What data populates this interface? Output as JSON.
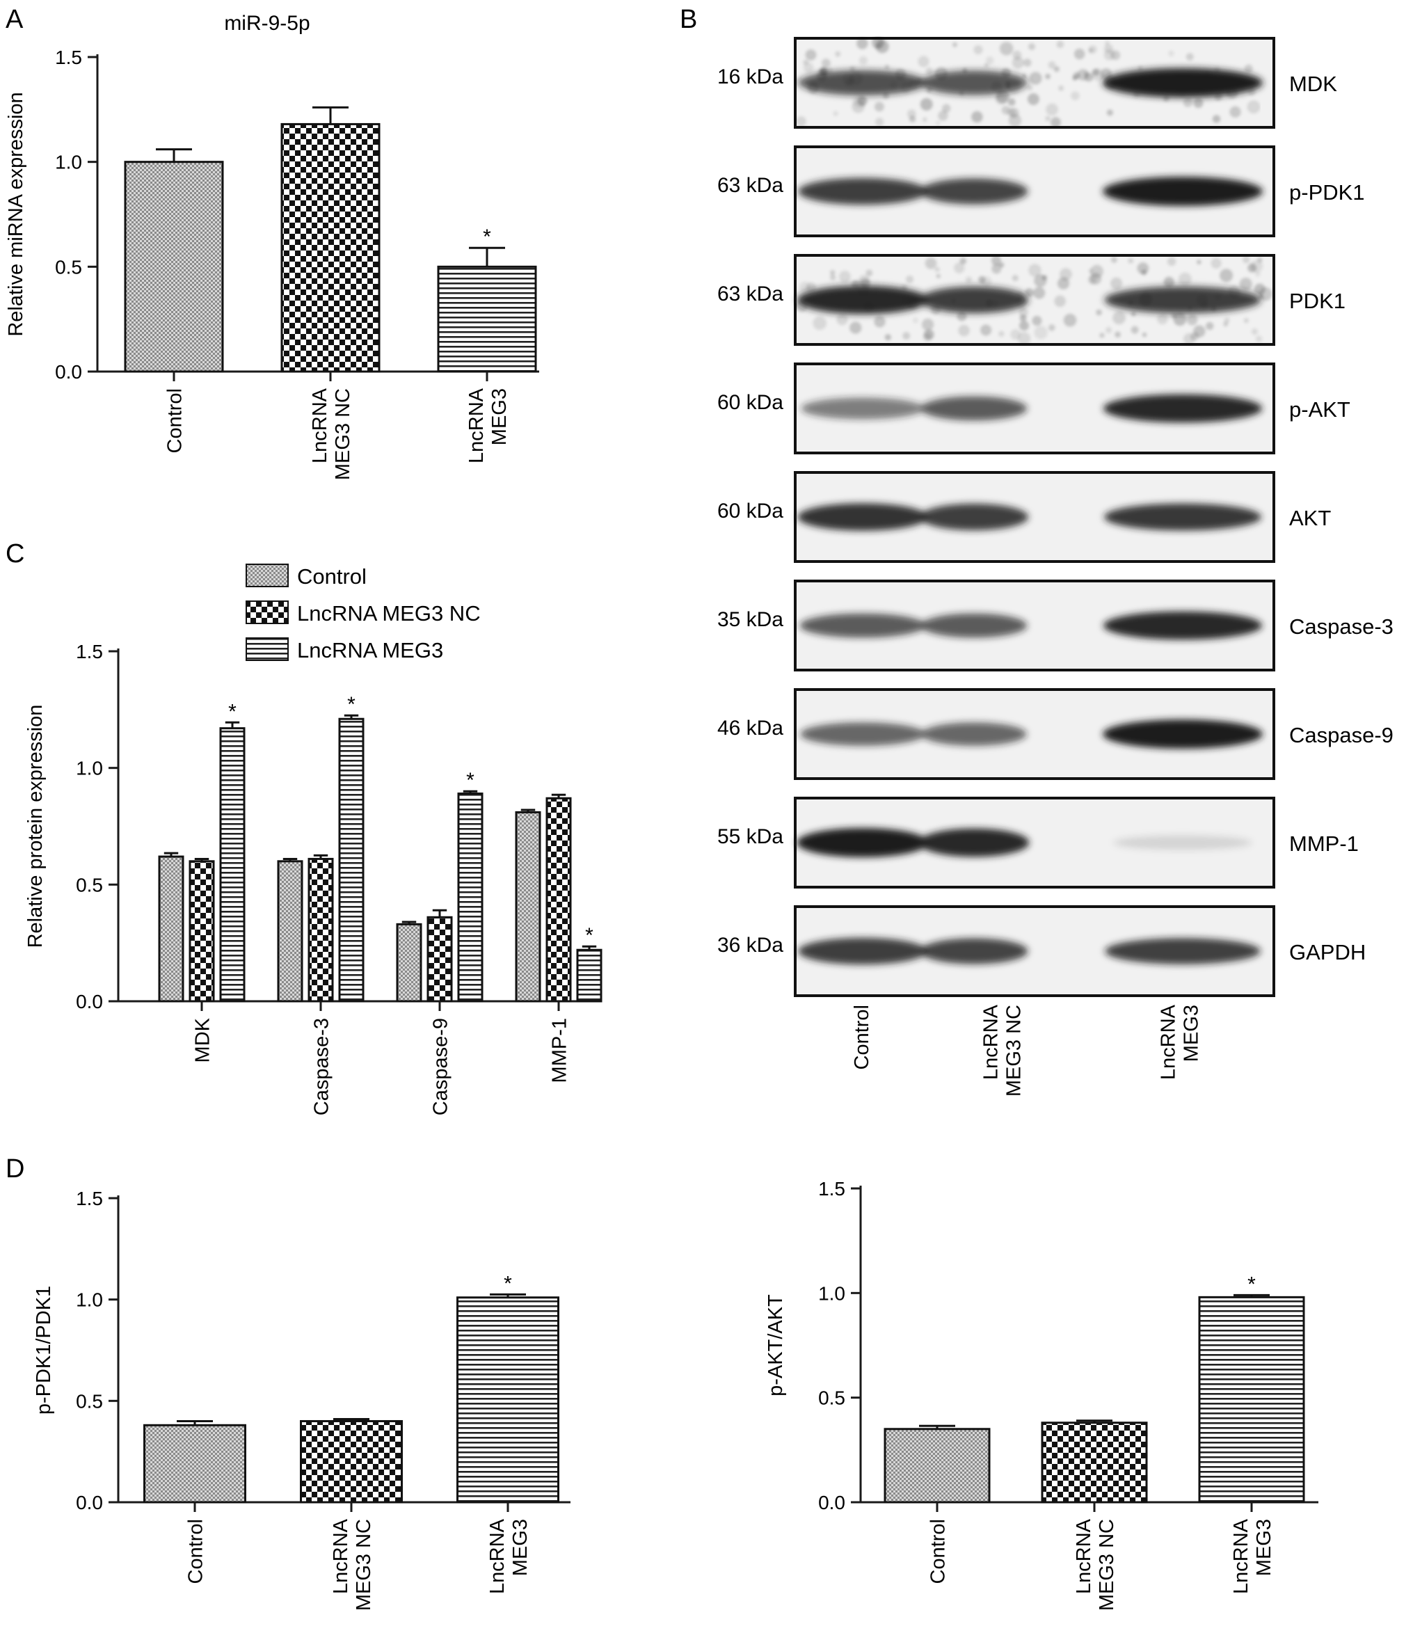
{
  "figure": {
    "panel_letters": [
      "A",
      "B",
      "C",
      "D"
    ]
  },
  "colors": {
    "axis": "#1a1a1a",
    "bar_outline": "#111111",
    "blot_background": "#f1f1f1",
    "band": "#1c1c1c"
  },
  "chart_data": [
    {
      "id": "A",
      "type": "bar",
      "title": "miR-9-5p",
      "ylabel": "Relative miRNA expression",
      "xlabel": "",
      "ylim": [
        0,
        1.5
      ],
      "yticks": [
        "0.0",
        "0.5",
        "1.0",
        "1.5"
      ],
      "categories": [
        [
          "Control"
        ],
        [
          "LncRNA",
          "MEG3 NC"
        ],
        [
          "LncRNA",
          "MEG3"
        ]
      ],
      "values": [
        1.0,
        1.18,
        0.5
      ],
      "errors": [
        0.06,
        0.08,
        0.09
      ],
      "significance": [
        "",
        "",
        "*"
      ],
      "patterns": [
        "control",
        "nc",
        "meg3"
      ],
      "grid": false
    },
    {
      "id": "C",
      "type": "bar",
      "title": "",
      "ylabel": "Relative protein expression",
      "xlabel": "",
      "ylim": [
        0,
        1.5
      ],
      "yticks": [
        "0.0",
        "0.5",
        "1.0",
        "1.5"
      ],
      "categories": [
        [
          "MDK"
        ],
        [
          "Caspase-3"
        ],
        [
          "Caspase-9"
        ],
        [
          "MMP-1"
        ]
      ],
      "legend": [
        "Control",
        "LncRNA MEG3 NC",
        "LncRNA MEG3"
      ],
      "legend_position": "top",
      "series": [
        {
          "name": "Control",
          "pattern": "control",
          "values": [
            0.62,
            0.6,
            0.33,
            0.81
          ],
          "errors": [
            0.015,
            0.01,
            0.01,
            0.01
          ],
          "significance": [
            "",
            "",
            "",
            ""
          ]
        },
        {
          "name": "LncRNA MEG3 NC",
          "pattern": "nc",
          "values": [
            0.6,
            0.61,
            0.36,
            0.87
          ],
          "errors": [
            0.01,
            0.015,
            0.03,
            0.015
          ],
          "significance": [
            "",
            "",
            "",
            ""
          ]
        },
        {
          "name": "LncRNA MEG3",
          "pattern": "meg3",
          "values": [
            1.17,
            1.21,
            0.89,
            0.22
          ],
          "errors": [
            0.025,
            0.015,
            0.01,
            0.015
          ],
          "significance": [
            "*",
            "*",
            "*",
            "*"
          ]
        }
      ],
      "grid": false
    },
    {
      "id": "D1",
      "type": "bar",
      "title": "",
      "ylabel": "p-PDK1/PDK1",
      "xlabel": "",
      "ylim": [
        0,
        1.5
      ],
      "yticks": [
        "0.0",
        "0.5",
        "1.0",
        "1.5"
      ],
      "categories": [
        [
          "Control"
        ],
        [
          "LncRNA",
          "MEG3 NC"
        ],
        [
          "LncRNA",
          "MEG3"
        ]
      ],
      "values": [
        0.38,
        0.4,
        1.01
      ],
      "errors": [
        0.02,
        0.01,
        0.015
      ],
      "significance": [
        "",
        "",
        "*"
      ],
      "patterns": [
        "control",
        "nc",
        "meg3"
      ],
      "grid": false
    },
    {
      "id": "D2",
      "type": "bar",
      "title": "",
      "ylabel": "p-AKT/AKT",
      "xlabel": "",
      "ylim": [
        0,
        1.5
      ],
      "yticks": [
        "0.0",
        "0.5",
        "1.0",
        "1.5"
      ],
      "categories": [
        [
          "Control"
        ],
        [
          "LncRNA",
          "MEG3 NC"
        ],
        [
          "LncRNA",
          "MEG3"
        ]
      ],
      "values": [
        0.35,
        0.38,
        0.98
      ],
      "errors": [
        0.015,
        0.01,
        0.01
      ],
      "significance": [
        "",
        "",
        "*"
      ],
      "patterns": [
        "control",
        "nc",
        "meg3"
      ],
      "grid": false
    }
  ],
  "western_blot": {
    "panel": "B",
    "lanes": [
      [
        "Control"
      ],
      [
        "LncRNA",
        "MEG3 NC"
      ],
      [
        "LncRNA",
        "MEG3"
      ]
    ],
    "rows": [
      {
        "protein": "MDK",
        "size": "16 kDa",
        "intensity": [
          0.75,
          0.72,
          1.0
        ],
        "noisy": true
      },
      {
        "protein": "p-PDK1",
        "size": "63 kDa",
        "intensity": [
          0.85,
          0.8,
          1.0
        ]
      },
      {
        "protein": "PDK1",
        "size": "63 kDa",
        "intensity": [
          0.95,
          0.85,
          0.85
        ],
        "noisy": true
      },
      {
        "protein": "p-AKT",
        "size": "60 kDa",
        "intensity": [
          0.55,
          0.7,
          0.95
        ]
      },
      {
        "protein": "AKT",
        "size": "60 kDa",
        "intensity": [
          0.9,
          0.85,
          0.88
        ]
      },
      {
        "protein": "Caspase-3",
        "size": "35 kDa",
        "intensity": [
          0.7,
          0.7,
          0.95
        ]
      },
      {
        "protein": "Caspase-9",
        "size": "46 kDa",
        "intensity": [
          0.65,
          0.65,
          1.0
        ]
      },
      {
        "protein": "MMP-1",
        "size": "55 kDa",
        "intensity": [
          1.0,
          0.95,
          0.12
        ]
      },
      {
        "protein": "GAPDH",
        "size": "36 kDa",
        "intensity": [
          0.85,
          0.8,
          0.82
        ]
      }
    ]
  }
}
